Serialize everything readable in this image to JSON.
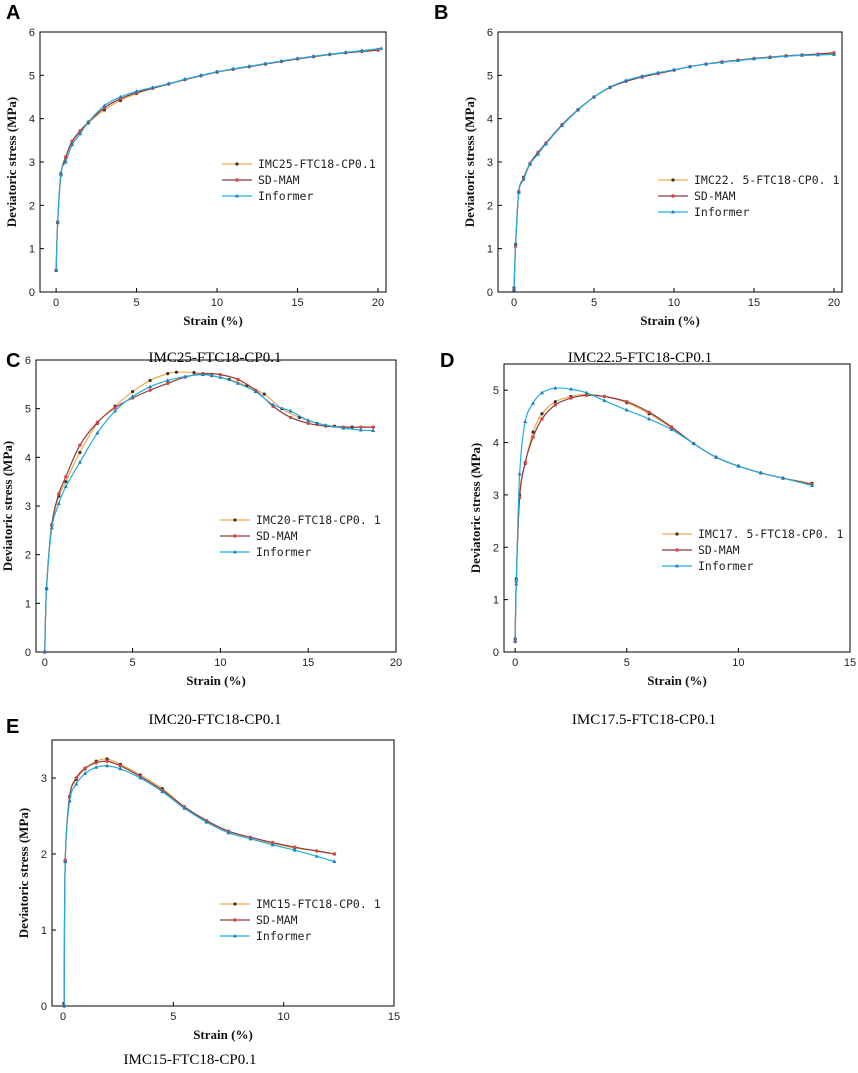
{
  "figure": {
    "panels": [
      {
        "letter": "A",
        "caption": "IMC25-FTC18-CP0.1"
      },
      {
        "letter": "B",
        "caption": "IMC22.5-FTC18-CP0.1"
      },
      {
        "letter": "C",
        "caption": "IMC20-FTC18-CP0.1"
      },
      {
        "letter": "D",
        "caption": "IMC17.5-FTC18-CP0.1"
      },
      {
        "letter": "E",
        "caption": "IMC15-FTC18-CP0.1"
      }
    ]
  },
  "colors": {
    "experiment": "#f0a850",
    "experiment_marker": "#333333",
    "sdmam": "#8b3a3a",
    "sdmam_marker": "#e04040",
    "informer": "#22aee0",
    "informer_marker": "#1a7fc0",
    "axis": "#000000"
  },
  "chart_data": [
    {
      "type": "line",
      "title": "IMC25-FTC18-CP0.1",
      "xlabel": "Strain (%)",
      "ylabel": "Deviatoric stress (MPa)",
      "xlim": [
        -1,
        20.5
      ],
      "ylim": [
        0,
        6
      ],
      "xticks": [
        0,
        5,
        10,
        15,
        20
      ],
      "yticks": [
        0,
        1,
        2,
        3,
        4,
        5,
        6
      ],
      "legend_position": "center-right",
      "series": [
        {
          "name": "IMC25-FTC18-CP0.1",
          "x": [
            0,
            0.1,
            0.3,
            0.6,
            1,
            1.5,
            2,
            3,
            4,
            5,
            6,
            7,
            8,
            9,
            10,
            11,
            12,
            13,
            14,
            15,
            16,
            17,
            18,
            19,
            20
          ],
          "y": [
            0.5,
            1.6,
            2.7,
            3.1,
            3.45,
            3.7,
            3.9,
            4.2,
            4.42,
            4.58,
            4.7,
            4.8,
            4.9,
            4.99,
            5.07,
            5.14,
            5.2,
            5.26,
            5.32,
            5.38,
            5.43,
            5.48,
            5.52,
            5.56,
            5.6
          ]
        },
        {
          "name": "SD-MAM",
          "x": [
            0,
            0.1,
            0.3,
            0.6,
            1,
            1.5,
            2,
            3,
            4,
            5,
            6,
            7,
            8,
            9,
            10,
            11,
            12,
            13,
            14,
            15,
            16,
            17,
            18,
            19,
            20
          ],
          "y": [
            0.5,
            1.62,
            2.72,
            3.12,
            3.48,
            3.72,
            3.92,
            4.25,
            4.46,
            4.6,
            4.7,
            4.8,
            4.9,
            4.99,
            5.08,
            5.14,
            5.2,
            5.26,
            5.32,
            5.38,
            5.43,
            5.48,
            5.52,
            5.55,
            5.58
          ]
        },
        {
          "name": "Informer",
          "x": [
            0,
            0.1,
            0.3,
            0.6,
            1,
            1.5,
            2,
            3,
            4,
            5,
            6,
            7,
            8,
            9,
            10,
            11,
            12,
            13,
            14,
            15,
            16,
            17,
            18,
            19,
            20.2
          ],
          "y": [
            0.5,
            1.6,
            2.75,
            3.0,
            3.4,
            3.65,
            3.92,
            4.3,
            4.5,
            4.63,
            4.72,
            4.81,
            4.91,
            5.0,
            5.08,
            5.15,
            5.21,
            5.27,
            5.33,
            5.39,
            5.44,
            5.49,
            5.53,
            5.57,
            5.62
          ]
        }
      ]
    },
    {
      "type": "line",
      "title": "IMC22.5-FTC18-CP0.1",
      "xlabel": "Strain (%)",
      "ylabel": "Deviatoric stress (MPa)",
      "xlim": [
        -1,
        20.5
      ],
      "ylim": [
        0,
        6
      ],
      "xticks": [
        0,
        5,
        10,
        15,
        20
      ],
      "yticks": [
        0,
        1,
        2,
        3,
        4,
        5,
        6
      ],
      "legend_position": "center-right",
      "series": [
        {
          "name": "IMC22. 5-FTC18-CP0. 1",
          "x": [
            0,
            0.1,
            0.3,
            0.6,
            1,
            1.5,
            2,
            3,
            4,
            5,
            6,
            7,
            8,
            9,
            10,
            11,
            12,
            13,
            14,
            15,
            16,
            17,
            18,
            19,
            20
          ],
          "y": [
            0.1,
            1.1,
            2.3,
            2.65,
            2.95,
            3.2,
            3.42,
            3.85,
            4.2,
            4.5,
            4.72,
            4.87,
            4.97,
            5.05,
            5.12,
            5.2,
            5.26,
            5.31,
            5.35,
            5.39,
            5.42,
            5.45,
            5.47,
            5.49,
            5.5
          ]
        },
        {
          "name": "SD-MAM",
          "x": [
            0,
            0.1,
            0.3,
            0.6,
            1,
            1.5,
            2,
            3,
            4,
            5,
            6,
            7,
            8,
            9,
            10,
            11,
            12,
            13,
            14,
            15,
            16,
            17,
            18,
            19,
            20
          ],
          "y": [
            0.05,
            1.05,
            2.32,
            2.62,
            2.97,
            3.22,
            3.44,
            3.86,
            4.21,
            4.5,
            4.72,
            4.86,
            4.96,
            5.04,
            5.12,
            5.2,
            5.26,
            5.31,
            5.35,
            5.39,
            5.42,
            5.45,
            5.47,
            5.49,
            5.52
          ]
        },
        {
          "name": "Informer",
          "x": [
            0,
            0.1,
            0.3,
            0.6,
            1,
            1.5,
            2,
            3,
            4,
            5,
            6,
            7,
            8,
            9,
            10,
            11,
            12,
            13,
            14,
            15,
            16,
            17,
            18,
            19,
            20
          ],
          "y": [
            0.05,
            1.1,
            2.3,
            2.6,
            2.95,
            3.18,
            3.42,
            3.84,
            4.2,
            4.5,
            4.73,
            4.88,
            4.98,
            5.06,
            5.13,
            5.2,
            5.26,
            5.3,
            5.34,
            5.38,
            5.41,
            5.44,
            5.46,
            5.47,
            5.48
          ]
        }
      ]
    },
    {
      "type": "line",
      "title": "IMC20-FTC18-CP0.1",
      "xlabel": "Strain (%)",
      "ylabel": "Deviatoric stress (MPa)",
      "xlim": [
        -0.5,
        20
      ],
      "ylim": [
        0,
        6
      ],
      "xticks": [
        0,
        5,
        10,
        15,
        20
      ],
      "yticks": [
        0,
        1,
        2,
        3,
        4,
        5,
        6
      ],
      "legend_position": "center-right",
      "series": [
        {
          "name": "IMC20-FTC18-CP0. 1",
          "x": [
            0,
            0.1,
            0.4,
            0.8,
            1.2,
            2,
            3,
            4,
            5,
            6,
            7,
            7.5,
            8.5,
            9.5,
            10.5,
            11.5,
            12.5,
            13.5,
            14.5,
            15.5,
            16.5,
            17.5,
            18.7
          ],
          "y": [
            0,
            1.3,
            2.6,
            3.2,
            3.5,
            4.1,
            4.7,
            5.05,
            5.35,
            5.58,
            5.72,
            5.75,
            5.74,
            5.68,
            5.6,
            5.47,
            5.3,
            5.0,
            4.82,
            4.7,
            4.64,
            4.62,
            4.62
          ]
        },
        {
          "name": "SD-MAM",
          "x": [
            0,
            0.1,
            0.4,
            0.8,
            1.2,
            2,
            3,
            4,
            5,
            6,
            7,
            8,
            9,
            10,
            11,
            12,
            13,
            14,
            15,
            16,
            17,
            18,
            18.7
          ],
          "y": [
            0,
            1.3,
            2.62,
            3.25,
            3.6,
            4.25,
            4.72,
            5.02,
            5.22,
            5.38,
            5.52,
            5.65,
            5.72,
            5.7,
            5.6,
            5.38,
            5.05,
            4.82,
            4.7,
            4.64,
            4.62,
            4.62,
            4.62
          ]
        },
        {
          "name": "Informer",
          "x": [
            0,
            0.1,
            0.4,
            0.8,
            1.2,
            2,
            3,
            4,
            5,
            6,
            7,
            8,
            9,
            10,
            11,
            12,
            13,
            14,
            15,
            16,
            17,
            18,
            18.7
          ],
          "y": [
            0,
            1.3,
            2.55,
            3.05,
            3.4,
            3.9,
            4.5,
            4.95,
            5.25,
            5.45,
            5.58,
            5.66,
            5.7,
            5.64,
            5.52,
            5.35,
            5.08,
            4.95,
            4.76,
            4.66,
            4.6,
            4.56,
            4.55
          ]
        }
      ]
    },
    {
      "type": "line",
      "title": "IMC17.5-FTC18-CP0.1",
      "xlabel": "Strain (%)",
      "ylabel": "Deviatoric stress (MPa)",
      "xlim": [
        -0.5,
        15
      ],
      "ylim": [
        0,
        5.5
      ],
      "xticks": [
        0,
        5,
        10,
        15
      ],
      "yticks": [
        0,
        1,
        2,
        3,
        4,
        5
      ],
      "legend_position": "center-right",
      "series": [
        {
          "name": "IMC17. 5-FTC18-CP0. 1",
          "x": [
            0,
            0.05,
            0.2,
            0.45,
            0.8,
            1.2,
            1.8,
            2.5,
            3.2,
            4,
            5,
            6,
            7,
            8,
            9,
            10,
            11,
            12,
            13.3
          ],
          "y": [
            0.25,
            1.4,
            3.0,
            3.6,
            4.2,
            4.55,
            4.78,
            4.88,
            4.92,
            4.88,
            4.76,
            4.55,
            4.28,
            3.98,
            3.72,
            3.55,
            3.42,
            3.32,
            3.22
          ]
        },
        {
          "name": "SD-MAM",
          "x": [
            0,
            0.05,
            0.2,
            0.45,
            0.8,
            1.2,
            1.8,
            2.5,
            3.2,
            4,
            5,
            6,
            7,
            8,
            9,
            10,
            11,
            12,
            13.3
          ],
          "y": [
            0.2,
            1.35,
            2.95,
            3.62,
            4.1,
            4.45,
            4.72,
            4.85,
            4.9,
            4.88,
            4.78,
            4.58,
            4.3,
            3.98,
            3.72,
            3.55,
            3.42,
            3.32,
            3.2
          ]
        },
        {
          "name": "Informer",
          "x": [
            0,
            0.05,
            0.2,
            0.45,
            0.8,
            1.2,
            1.8,
            2.5,
            3.2,
            4,
            5,
            6,
            7,
            8,
            9,
            10,
            11,
            12,
            13.3
          ],
          "y": [
            0.2,
            1.3,
            3.4,
            4.4,
            4.75,
            4.95,
            5.04,
            5.02,
            4.95,
            4.8,
            4.62,
            4.45,
            4.25,
            3.98,
            3.72,
            3.55,
            3.42,
            3.32,
            3.18
          ]
        }
      ]
    },
    {
      "type": "line",
      "title": "IMC15-FTC18-CP0.1",
      "xlabel": "Strain (%)",
      "ylabel": "Deviatoric stress (MPa)",
      "xlim": [
        -0.5,
        15
      ],
      "ylim": [
        0,
        3.5
      ],
      "xticks": [
        0,
        5,
        10,
        15
      ],
      "yticks": [
        0,
        1,
        2,
        3
      ],
      "legend_position": "center-right",
      "series": [
        {
          "name": "IMC15-FTC18-CP0. 1",
          "x": [
            0.05,
            0.1,
            0.3,
            0.6,
            1,
            1.5,
            2,
            2.6,
            3.5,
            4.5,
            5.5,
            6.5,
            7.5,
            8.5,
            9.5,
            10.5,
            11.5,
            12.3
          ],
          "y": [
            0,
            1.9,
            2.75,
            2.98,
            3.12,
            3.22,
            3.25,
            3.18,
            3.04,
            2.86,
            2.62,
            2.42,
            2.28,
            2.2,
            2.14,
            2.08,
            2.04,
            2.0
          ]
        },
        {
          "name": "SD-MAM",
          "x": [
            0.05,
            0.1,
            0.3,
            0.6,
            1,
            1.5,
            2,
            2.6,
            3.5,
            4.5,
            5.5,
            6.5,
            7.5,
            8.5,
            9.5,
            10.5,
            11.5,
            12.3
          ],
          "y": [
            0,
            1.92,
            2.76,
            3.0,
            3.13,
            3.2,
            3.22,
            3.16,
            3.02,
            2.84,
            2.62,
            2.44,
            2.3,
            2.22,
            2.15,
            2.09,
            2.04,
            2.0
          ]
        },
        {
          "name": "Informer",
          "x": [
            0.05,
            0.1,
            0.3,
            0.6,
            1,
            1.5,
            2,
            2.6,
            3.5,
            4.5,
            5.5,
            6.5,
            7.5,
            8.5,
            9.5,
            10.5,
            11.5,
            12.3
          ],
          "y": [
            0,
            1.9,
            2.7,
            2.92,
            3.06,
            3.14,
            3.16,
            3.12,
            3.0,
            2.82,
            2.6,
            2.42,
            2.28,
            2.2,
            2.12,
            2.05,
            1.97,
            1.9
          ]
        }
      ]
    }
  ]
}
